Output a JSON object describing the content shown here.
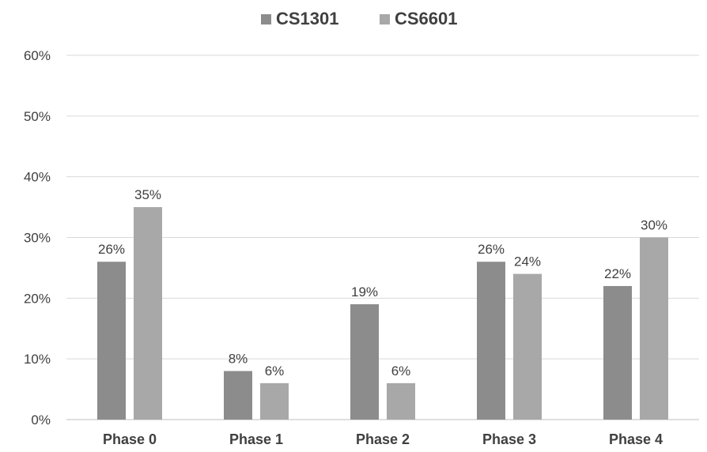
{
  "chart_data": {
    "type": "bar",
    "title": "",
    "xlabel": "",
    "ylabel": "",
    "categories": [
      "Phase 0",
      "Phase 1",
      "Phase 2",
      "Phase 3",
      "Phase 4"
    ],
    "series": [
      {
        "name": "CS1301",
        "values": [
          26,
          8,
          19,
          26,
          22
        ],
        "color": "#8c8c8c"
      },
      {
        "name": "CS6601",
        "values": [
          35,
          6,
          6,
          24,
          30
        ],
        "color": "#a8a8a8"
      }
    ],
    "value_suffix": "%",
    "ylim": [
      0,
      60
    ],
    "yticks": [
      0,
      10,
      20,
      30,
      40,
      50,
      60
    ],
    "grid": true,
    "gridline_color": "#d9d9d9",
    "label_color": "#404040",
    "legend_position": "top-center",
    "data_labels": true
  }
}
